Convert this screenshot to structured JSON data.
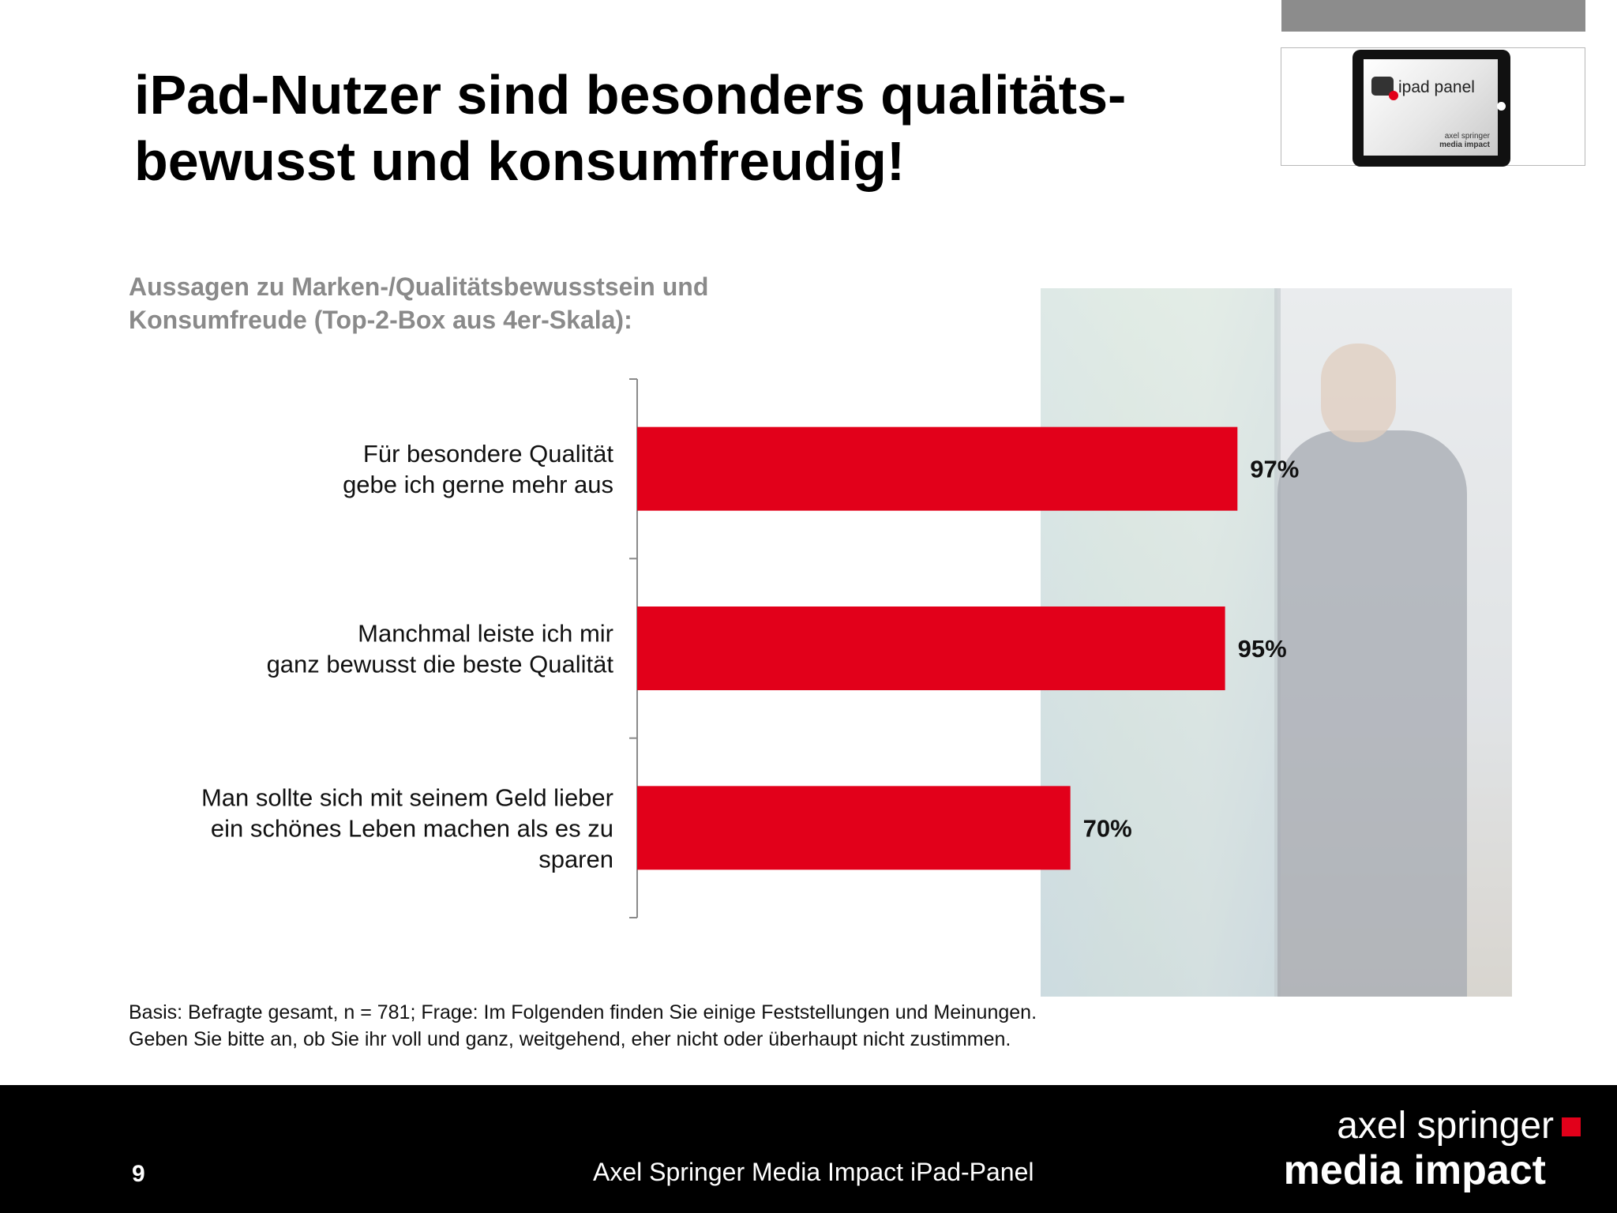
{
  "slide": {
    "title_line1": "iPad-Nutzer sind besonders qualitäts-",
    "title_line2": "bewusst und konsumfreudig!",
    "subtitle_line1": "Aussagen zu Marken-/Qualitätsbewusstsein und",
    "subtitle_line2": "Konsumfreude (Top-2-Box aus 4er-Skala):",
    "basis_line1": "Basis: Befragte gesamt, n = 781; Frage: Im Folgenden finden Sie einige Feststellungen und Meinungen.",
    "basis_line2": "Geben Sie bitte an, ob Sie ihr voll und ganz, weitgehend, eher nicht oder überhaupt nicht zustimmen.",
    "page_number": "9",
    "footer_title": "Axel Springer Media Impact iPad-Panel",
    "brand_line1": "axel springer",
    "brand_line2": "media impact",
    "logo": {
      "tablet_title": "ipad panel",
      "tablet_sub1": "axel springer",
      "tablet_sub2": "media impact"
    },
    "colors": {
      "bar": "#e2001a",
      "accent_square": "#e2001a",
      "top_bar": "#8c8c8c",
      "subtitle": "#8a8a8a"
    }
  },
  "chart_data": {
    "type": "bar",
    "orientation": "horizontal",
    "categories": [
      [
        "Für besondere Qualität",
        "gebe ich gerne mehr aus"
      ],
      [
        "Manchmal leiste ich mir",
        "ganz bewusst die beste Qualität"
      ],
      [
        "Man sollte sich mit seinem Geld lieber",
        "ein schönes Leben machen als es zu",
        "sparen"
      ]
    ],
    "values": [
      97,
      95,
      70
    ],
    "value_labels": [
      "97%",
      "95%",
      "70%"
    ],
    "xlim": [
      0,
      100
    ],
    "grid": false,
    "legend": "none"
  }
}
